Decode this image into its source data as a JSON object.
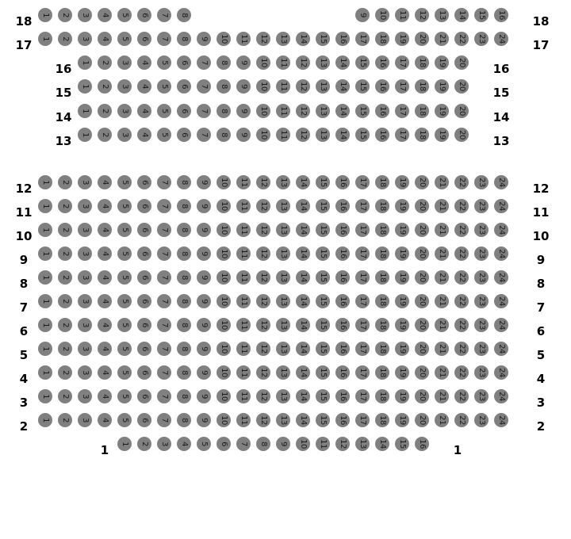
{
  "seat_color": "#808080",
  "rows": [
    {
      "label": "18",
      "seats": [
        1,
        2,
        3,
        4,
        5,
        6,
        7,
        8,
        9,
        10,
        11,
        12,
        13,
        14,
        15,
        16
      ]
    },
    {
      "label": "17",
      "seats": [
        1,
        2,
        3,
        4,
        5,
        6,
        7,
        8,
        9,
        10,
        11,
        12,
        13,
        14,
        15,
        16,
        17,
        18,
        19,
        20,
        21,
        22,
        23,
        24
      ]
    },
    {
      "label": "16",
      "seats": [
        1,
        2,
        3,
        4,
        5,
        6,
        7,
        8,
        9,
        10,
        11,
        12,
        13,
        14,
        15,
        16,
        17,
        18,
        19,
        20
      ]
    },
    {
      "label": "15",
      "seats": [
        1,
        2,
        3,
        4,
        5,
        6,
        7,
        8,
        9,
        10,
        11,
        12,
        13,
        14,
        15,
        16,
        17,
        18,
        19,
        20
      ]
    },
    {
      "label": "14",
      "seats": [
        1,
        2,
        3,
        4,
        5,
        6,
        7,
        8,
        9,
        10,
        11,
        12,
        13,
        14,
        15,
        16,
        17,
        18,
        19,
        20
      ]
    },
    {
      "label": "13",
      "seats": [
        1,
        2,
        3,
        4,
        5,
        6,
        7,
        8,
        9,
        10,
        11,
        12,
        13,
        14,
        15,
        16,
        17,
        18,
        19,
        20
      ]
    },
    {
      "label": "12",
      "seats": [
        1,
        2,
        3,
        4,
        5,
        6,
        7,
        8,
        9,
        10,
        11,
        12,
        13,
        14,
        15,
        16,
        17,
        18,
        19,
        20,
        21,
        22,
        23,
        24
      ]
    },
    {
      "label": "11",
      "seats": [
        1,
        2,
        3,
        4,
        5,
        6,
        7,
        8,
        9,
        10,
        11,
        12,
        13,
        14,
        15,
        16,
        17,
        18,
        19,
        20,
        21,
        22,
        23,
        24
      ]
    },
    {
      "label": "10",
      "seats": [
        1,
        2,
        3,
        4,
        5,
        6,
        7,
        8,
        9,
        10,
        11,
        12,
        13,
        14,
        15,
        16,
        17,
        18,
        19,
        20,
        21,
        22,
        23,
        24
      ]
    },
    {
      "label": "9",
      "seats": [
        1,
        2,
        3,
        4,
        5,
        6,
        7,
        8,
        9,
        10,
        11,
        12,
        13,
        14,
        15,
        16,
        17,
        18,
        19,
        20,
        21,
        22,
        23,
        24
      ]
    },
    {
      "label": "8",
      "seats": [
        1,
        2,
        3,
        4,
        5,
        6,
        7,
        8,
        9,
        10,
        11,
        12,
        13,
        14,
        15,
        16,
        17,
        18,
        19,
        20,
        21,
        22,
        23,
        24
      ]
    },
    {
      "label": "7",
      "seats": [
        1,
        2,
        3,
        4,
        5,
        6,
        7,
        8,
        9,
        10,
        11,
        12,
        13,
        14,
        15,
        16,
        17,
        18,
        19,
        20,
        21,
        22,
        23,
        24
      ]
    },
    {
      "label": "6",
      "seats": [
        1,
        2,
        3,
        4,
        5,
        6,
        7,
        8,
        9,
        10,
        11,
        12,
        13,
        14,
        15,
        16,
        17,
        18,
        19,
        20,
        21,
        22,
        23,
        24
      ]
    },
    {
      "label": "5",
      "seats": [
        1,
        2,
        3,
        4,
        5,
        6,
        7,
        8,
        9,
        10,
        11,
        12,
        13,
        14,
        15,
        16,
        17,
        18,
        19,
        20,
        21,
        22,
        23,
        24
      ]
    },
    {
      "label": "4",
      "seats": [
        1,
        2,
        3,
        4,
        5,
        6,
        7,
        8,
        9,
        10,
        11,
        12,
        13,
        14,
        15,
        16,
        17,
        18,
        19,
        20,
        21,
        22,
        23,
        24
      ]
    },
    {
      "label": "3",
      "seats": [
        1,
        2,
        3,
        4,
        5,
        6,
        7,
        8,
        9,
        10,
        11,
        12,
        13,
        14,
        15,
        16,
        17,
        18,
        19,
        20,
        21,
        22,
        23,
        24
      ]
    },
    {
      "label": "2",
      "seats": [
        1,
        2,
        3,
        4,
        5,
        6,
        7,
        8,
        9,
        10,
        11,
        12,
        13,
        14,
        15,
        16,
        17,
        18,
        19,
        20,
        21,
        22,
        23,
        24
      ]
    },
    {
      "label": "1",
      "seats": [
        1,
        2,
        3,
        4,
        5,
        6,
        7,
        8,
        9,
        10,
        11,
        12,
        13,
        14,
        15,
        16
      ]
    }
  ]
}
